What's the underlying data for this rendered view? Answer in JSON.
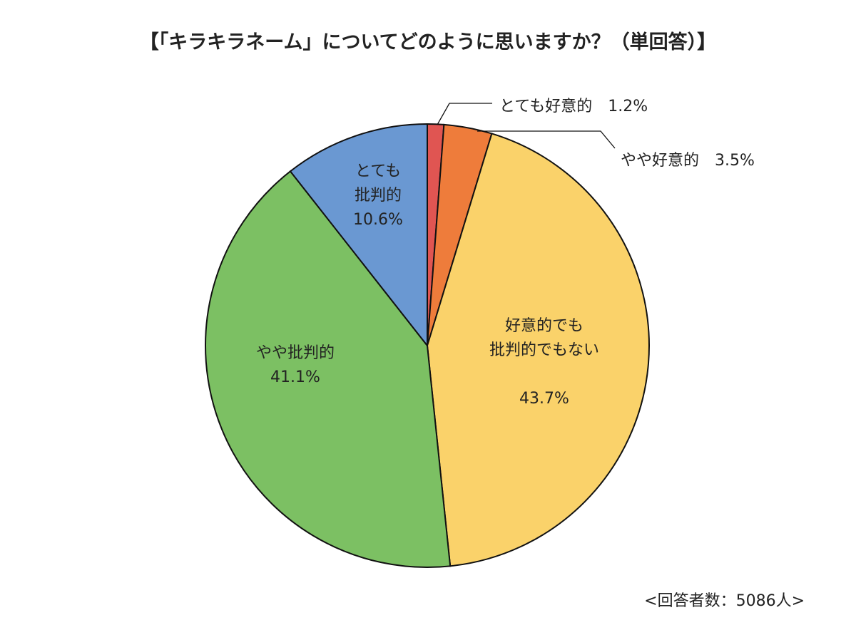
{
  "chart_data": {
    "type": "pie",
    "title": "【「キラキラネーム」についてどのように思いますか？（単回答）】",
    "note": "<回答者数：5086人>",
    "start_angle": "12 o'clock",
    "direction": "clockwise",
    "slices": [
      {
        "name": "とても好意的",
        "value": 1.2,
        "percent_label": "1.2%",
        "color": "#e05552",
        "label_lines": [
          "とても好意的　1.2%"
        ],
        "label_style": "outside-leader"
      },
      {
        "name": "やや好意的",
        "value": 3.5,
        "percent_label": "3.5%",
        "color": "#ee7c3b",
        "label_lines": [
          "やや好意的　3.5%"
        ],
        "label_style": "outside-leader"
      },
      {
        "name": "好意的でも批判的でもない",
        "value": 43.7,
        "percent_label": "43.7%",
        "color": "#fad26a",
        "label_lines": [
          "好意的でも",
          "批判的でもない",
          "",
          "43.7%"
        ],
        "label_style": "inside"
      },
      {
        "name": "やや批判的",
        "value": 41.1,
        "percent_label": "41.1%",
        "color": "#7cc063",
        "label_lines": [
          "やや批判的",
          "41.1%"
        ],
        "label_style": "inside"
      },
      {
        "name": "とても批判的",
        "value": 10.6,
        "percent_label": "10.6%",
        "color": "#6a98d2",
        "label_lines": [
          "とても",
          "批判的",
          "10.6%"
        ],
        "label_style": "inside"
      }
    ]
  }
}
